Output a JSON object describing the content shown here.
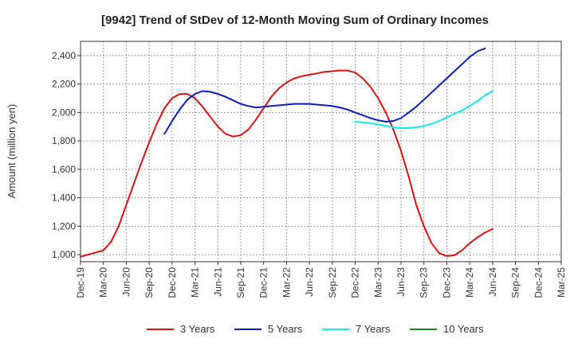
{
  "chart_data": {
    "type": "line",
    "title": "[9942]  Trend of StDev of 12-Month Moving Sum of Ordinary Incomes",
    "xlabel": "",
    "ylabel": "Amount (million yen)",
    "ylim": [
      950,
      2500
    ],
    "y_ticks": [
      1000,
      1200,
      1400,
      1600,
      1800,
      2000,
      2200,
      2400
    ],
    "y_tick_labels": [
      "1,000",
      "1,200",
      "1,400",
      "1,600",
      "1,800",
      "2,000",
      "2,200",
      "2,400"
    ],
    "x_ticks": [
      "2019-12",
      "2020-03",
      "2020-06",
      "2020-09",
      "2020-12",
      "2021-03",
      "2021-06",
      "2021-09",
      "2021-12",
      "2022-03",
      "2022-06",
      "2022-09",
      "2022-12",
      "2023-03",
      "2023-06",
      "2023-09",
      "2023-12",
      "2024-03",
      "2024-06",
      "2024-09",
      "2024-12",
      "2025-03"
    ],
    "x_tick_labels": [
      "Dec-19",
      "Mar-20",
      "Jun-20",
      "Sep-20",
      "Dec-20",
      "Mar-21",
      "Jun-21",
      "Sep-21",
      "Dec-21",
      "Mar-22",
      "Jun-22",
      "Sep-22",
      "Dec-22",
      "Mar-23",
      "Jun-23",
      "Sep-23",
      "Dec-23",
      "Mar-24",
      "Jun-24",
      "Sep-24",
      "Dec-24",
      "Mar-25"
    ],
    "grid": true,
    "legend_position": "bottom",
    "series": [
      {
        "name": "3 Years",
        "color": "#dd1111",
        "points": [
          [
            "2019-12",
            985
          ],
          [
            "2020-01",
            1000
          ],
          [
            "2020-02",
            1015
          ],
          [
            "2020-03",
            1030
          ],
          [
            "2020-04",
            1090
          ],
          [
            "2020-05",
            1200
          ],
          [
            "2020-06",
            1350
          ],
          [
            "2020-07",
            1500
          ],
          [
            "2020-08",
            1650
          ],
          [
            "2020-09",
            1790
          ],
          [
            "2020-10",
            1920
          ],
          [
            "2020-11",
            2030
          ],
          [
            "2020-12",
            2100
          ],
          [
            "2021-01",
            2130
          ],
          [
            "2021-02",
            2130
          ],
          [
            "2021-03",
            2100
          ],
          [
            "2021-04",
            2040
          ],
          [
            "2021-05",
            1970
          ],
          [
            "2021-06",
            1900
          ],
          [
            "2021-07",
            1850
          ],
          [
            "2021-08",
            1830
          ],
          [
            "2021-09",
            1840
          ],
          [
            "2021-10",
            1880
          ],
          [
            "2021-11",
            1950
          ],
          [
            "2021-12",
            2030
          ],
          [
            "2022-01",
            2110
          ],
          [
            "2022-02",
            2170
          ],
          [
            "2022-03",
            2210
          ],
          [
            "2022-04",
            2240
          ],
          [
            "2022-05",
            2255
          ],
          [
            "2022-06",
            2265
          ],
          [
            "2022-07",
            2275
          ],
          [
            "2022-08",
            2285
          ],
          [
            "2022-09",
            2290
          ],
          [
            "2022-10",
            2295
          ],
          [
            "2022-11",
            2295
          ],
          [
            "2022-12",
            2280
          ],
          [
            "2023-01",
            2240
          ],
          [
            "2023-02",
            2180
          ],
          [
            "2023-03",
            2100
          ],
          [
            "2023-04",
            2000
          ],
          [
            "2023-05",
            1880
          ],
          [
            "2023-06",
            1730
          ],
          [
            "2023-07",
            1550
          ],
          [
            "2023-08",
            1350
          ],
          [
            "2023-09",
            1200
          ],
          [
            "2023-10",
            1080
          ],
          [
            "2023-11",
            1010
          ],
          [
            "2023-12",
            990
          ],
          [
            "2024-01",
            995
          ],
          [
            "2024-02",
            1030
          ],
          [
            "2024-03",
            1080
          ],
          [
            "2024-04",
            1120
          ],
          [
            "2024-05",
            1155
          ],
          [
            "2024-06",
            1180
          ]
        ]
      },
      {
        "name": "5 Years",
        "color": "#0b1cc0",
        "points": [
          [
            "2020-11",
            1850
          ],
          [
            "2020-12",
            1940
          ],
          [
            "2021-01",
            2020
          ],
          [
            "2021-02",
            2090
          ],
          [
            "2021-03",
            2130
          ],
          [
            "2021-04",
            2150
          ],
          [
            "2021-05",
            2145
          ],
          [
            "2021-06",
            2130
          ],
          [
            "2021-07",
            2110
          ],
          [
            "2021-08",
            2085
          ],
          [
            "2021-09",
            2060
          ],
          [
            "2021-10",
            2045
          ],
          [
            "2021-11",
            2035
          ],
          [
            "2021-12",
            2040
          ],
          [
            "2022-01",
            2045
          ],
          [
            "2022-02",
            2050
          ],
          [
            "2022-03",
            2055
          ],
          [
            "2022-04",
            2060
          ],
          [
            "2022-05",
            2060
          ],
          [
            "2022-06",
            2060
          ],
          [
            "2022-07",
            2055
          ],
          [
            "2022-08",
            2050
          ],
          [
            "2022-09",
            2045
          ],
          [
            "2022-10",
            2035
          ],
          [
            "2022-11",
            2020
          ],
          [
            "2022-12",
            2000
          ],
          [
            "2023-01",
            1980
          ],
          [
            "2023-02",
            1960
          ],
          [
            "2023-03",
            1945
          ],
          [
            "2023-04",
            1935
          ],
          [
            "2023-05",
            1940
          ],
          [
            "2023-06",
            1960
          ],
          [
            "2023-07",
            2000
          ],
          [
            "2023-08",
            2040
          ],
          [
            "2023-09",
            2090
          ],
          [
            "2023-10",
            2140
          ],
          [
            "2023-11",
            2190
          ],
          [
            "2023-12",
            2240
          ],
          [
            "2024-01",
            2290
          ],
          [
            "2024-02",
            2340
          ],
          [
            "2024-03",
            2390
          ],
          [
            "2024-04",
            2430
          ],
          [
            "2024-05",
            2450
          ]
        ]
      },
      {
        "name": "7 Years",
        "color": "#11e8ee",
        "points": [
          [
            "2022-12",
            1935
          ],
          [
            "2023-01",
            1930
          ],
          [
            "2023-02",
            1925
          ],
          [
            "2023-03",
            1915
          ],
          [
            "2023-04",
            1905
          ],
          [
            "2023-05",
            1895
          ],
          [
            "2023-06",
            1890
          ],
          [
            "2023-07",
            1890
          ],
          [
            "2023-08",
            1895
          ],
          [
            "2023-09",
            1905
          ],
          [
            "2023-10",
            1920
          ],
          [
            "2023-11",
            1940
          ],
          [
            "2023-12",
            1965
          ],
          [
            "2024-01",
            1990
          ],
          [
            "2024-02",
            2015
          ],
          [
            "2024-03",
            2045
          ],
          [
            "2024-04",
            2080
          ],
          [
            "2024-05",
            2120
          ],
          [
            "2024-06",
            2150
          ]
        ]
      },
      {
        "name": "10 Years",
        "color": "#1a8a1a",
        "points": []
      }
    ]
  }
}
